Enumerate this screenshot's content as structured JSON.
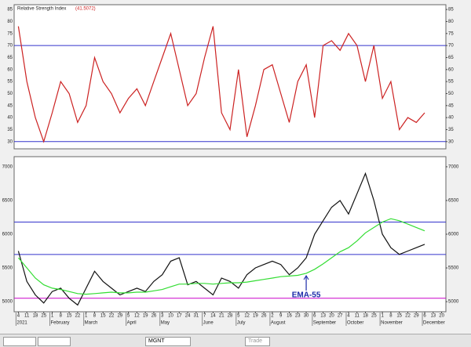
{
  "chart_data": [
    {
      "type": "line",
      "title": "Relative Strength Index",
      "current_label": "(41.5072)",
      "series": [
        {
          "name": "RSI",
          "color": "#cc2222",
          "values": [
            78,
            55,
            40,
            30,
            42,
            55,
            50,
            38,
            45,
            65,
            55,
            50,
            42,
            48,
            52,
            45,
            55,
            65,
            75,
            60,
            45,
            50,
            65,
            78,
            42,
            35,
            60,
            32,
            45,
            60,
            62,
            50,
            38,
            55,
            62,
            40,
            70,
            72,
            68,
            75,
            70,
            55,
            70,
            48,
            55,
            35,
            40,
            38,
            42,
            null,
            null
          ]
        }
      ],
      "levels": [
        {
          "value": 70,
          "color": "#3333cc"
        },
        {
          "value": 30,
          "color": "#3333cc"
        }
      ],
      "ylim": [
        27,
        87
      ],
      "yticks": [
        30,
        35,
        40,
        45,
        50,
        55,
        60,
        65,
        70,
        75,
        80,
        85
      ]
    },
    {
      "type": "line",
      "annotation": "EMA-55",
      "categories": [
        "4",
        "11",
        "18",
        "25",
        "1",
        "8",
        "15",
        "22",
        "1",
        "8",
        "15",
        "22",
        "29",
        "5",
        "12",
        "19",
        "26",
        "3",
        "10",
        "17",
        "24",
        "31",
        "7",
        "14",
        "21",
        "28",
        "5",
        "12",
        "19",
        "26",
        "2",
        "9",
        "16",
        "23",
        "30",
        "6",
        "13",
        "20",
        "27",
        "4",
        "11",
        "18",
        "25",
        "1",
        "8",
        "15",
        "22",
        "29",
        "6",
        "13",
        "20"
      ],
      "month_labels": [
        {
          "value": 0,
          "label": "2021"
        },
        {
          "value": 4,
          "label": "February"
        },
        {
          "value": 8,
          "label": "March"
        },
        {
          "value": 13,
          "label": "April"
        },
        {
          "value": 17,
          "label": "May"
        },
        {
          "value": 22,
          "label": "June"
        },
        {
          "value": 26,
          "label": "July"
        },
        {
          "value": 30,
          "label": "August"
        },
        {
          "value": 35,
          "label": "September"
        },
        {
          "value": 39,
          "label": "October"
        },
        {
          "value": 43,
          "label": "November"
        },
        {
          "value": 48,
          "label": "December"
        }
      ],
      "series": [
        {
          "name": "MGNT",
          "color": "#111111",
          "values": [
            5750,
            5300,
            5100,
            4980,
            5150,
            5200,
            5050,
            4950,
            5200,
            5450,
            5300,
            5200,
            5100,
            5150,
            5200,
            5150,
            5300,
            5400,
            5600,
            5650,
            5250,
            5300,
            5200,
            5100,
            5350,
            5300,
            5200,
            5400,
            5500,
            5550,
            5600,
            5550,
            5400,
            5500,
            5650,
            6000,
            6200,
            6400,
            6500,
            6300,
            6600,
            6900,
            6500,
            6000,
            5800,
            5700,
            5750,
            5800,
            5850,
            null,
            null
          ]
        },
        {
          "name": "EMA-55",
          "color": "#33dd33",
          "values": [
            5650,
            5500,
            5350,
            5250,
            5200,
            5180,
            5150,
            5120,
            5110,
            5120,
            5130,
            5140,
            5130,
            5130,
            5140,
            5140,
            5160,
            5180,
            5220,
            5260,
            5260,
            5270,
            5270,
            5260,
            5270,
            5280,
            5280,
            5290,
            5310,
            5330,
            5350,
            5370,
            5380,
            5390,
            5420,
            5480,
            5560,
            5650,
            5740,
            5800,
            5900,
            6020,
            6100,
            6180,
            6230,
            6200,
            6150,
            6100,
            6050,
            null,
            null
          ]
        }
      ],
      "levels": [
        {
          "value": 6180,
          "color": "#3333cc"
        },
        {
          "value": 5700,
          "color": "#3333cc"
        },
        {
          "value": 5050,
          "color": "#cc00cc"
        }
      ],
      "ylim": [
        4850,
        7150
      ],
      "yticks": [
        5000,
        5500,
        6000,
        6500,
        7000
      ]
    }
  ],
  "toolbar": {
    "symbol": "MGNT",
    "button": "Trade"
  }
}
